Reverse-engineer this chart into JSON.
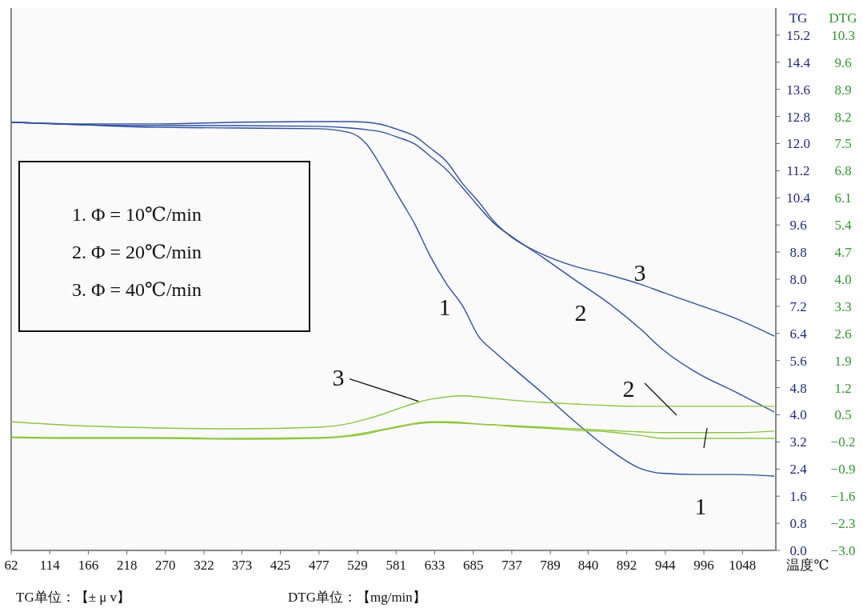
{
  "chart_data": {
    "type": "line",
    "xlabel": "温度℃",
    "ylabel": "TG",
    "y2label": "DTG",
    "xlim": [
      62,
      1093
    ],
    "xticks": [
      62,
      114,
      166,
      218,
      270,
      322,
      373,
      425,
      477,
      529,
      581,
      633,
      685,
      737,
      789,
      840,
      892,
      944,
      996,
      1048
    ],
    "ylim": [
      0,
      16
    ],
    "yticks": [
      {
        "value": 0,
        "label": "0.0"
      },
      0.8,
      1.6,
      2.4,
      3.2,
      {
        "value": 4,
        "label": "4.0"
      },
      4.8,
      5.6,
      6.4,
      7.2,
      {
        "value": 8,
        "label": "8.0"
      },
      8.8,
      9.6,
      10.4,
      11.2,
      {
        "value": 12,
        "label": "12.0"
      },
      12.8,
      13.6,
      14.4,
      15.2
    ],
    "y2lim": [
      -3,
      11
    ],
    "y2ticks": [
      {
        "value": -3,
        "label": "−3.0"
      },
      {
        "value": -2.3,
        "label": "−2.3"
      },
      {
        "value": -1.6,
        "label": "−1.6"
      },
      {
        "value": -0.9,
        "label": "−0.9"
      },
      {
        "value": -0.2,
        "label": "−0.2"
      },
      0.5,
      1.2,
      1.9,
      2.6,
      3.3,
      {
        "value": 4,
        "label": "4.0"
      },
      4.7,
      5.4,
      6.1,
      6.8,
      7.5,
      8.2,
      8.9,
      9.6,
      10.3
    ],
    "grid": false,
    "line_style": "solid",
    "marker": "none",
    "x": [
      62,
      151,
      259,
      367,
      476,
      519,
      541,
      562,
      584,
      606,
      627,
      649,
      671,
      692,
      714,
      736,
      779,
      822,
      866,
      909,
      942,
      985,
      1039,
      1091
    ],
    "series": [
      {
        "color": "#2f50a0",
        "values": [
          12.63,
          12.56,
          12.48,
          12.46,
          12.44,
          12.32,
          11.99,
          11.28,
          10.45,
          9.63,
          8.68,
          7.86,
          7.2,
          6.32,
          5.85,
          5.43,
          4.63,
          3.8,
          3.02,
          2.43,
          2.27,
          2.24,
          2.24,
          2.19
        ]
      },
      {
        "color": "#2f50a0",
        "values": [
          12.63,
          12.56,
          12.53,
          12.53,
          12.51,
          12.46,
          12.41,
          12.34,
          12.18,
          11.99,
          11.63,
          11.23,
          10.69,
          10.15,
          9.63,
          9.27,
          8.64,
          7.98,
          7.32,
          6.56,
          5.9,
          5.26,
          4.67,
          4.08
        ]
      },
      {
        "color": "#2f50a0",
        "values": [
          12.63,
          12.58,
          12.58,
          12.63,
          12.65,
          12.65,
          12.63,
          12.56,
          12.41,
          12.22,
          11.87,
          11.47,
          10.81,
          10.29,
          9.68,
          9.25,
          8.73,
          8.38,
          8.14,
          7.86,
          7.6,
          7.27,
          6.84,
          6.32
        ]
      },
      {
        "color": "#8cc63e",
        "axis": "y2",
        "values": [
          -0.09,
          -0.11,
          -0.11,
          -0.13,
          -0.11,
          -0.05,
          0.01,
          0.1,
          0.18,
          0.26,
          0.3,
          0.3,
          0.28,
          0.26,
          0.24,
          0.2,
          0.16,
          0.1,
          0.06,
          -0.03,
          -0.11,
          -0.11,
          -0.11,
          -0.11
        ]
      },
      {
        "color": "#8cc63e",
        "axis": "y2",
        "values": [
          -0.07,
          -0.09,
          -0.09,
          -0.11,
          -0.09,
          -0.03,
          0.04,
          0.12,
          0.2,
          0.28,
          0.32,
          0.32,
          0.3,
          0.26,
          0.24,
          0.22,
          0.18,
          0.14,
          0.1,
          0.06,
          0.04,
          0.04,
          0.04,
          0.08
        ]
      },
      {
        "color": "#8cc63e",
        "axis": "y2",
        "values": [
          0.32,
          0.22,
          0.16,
          0.14,
          0.18,
          0.28,
          0.39,
          0.51,
          0.66,
          0.8,
          0.9,
          0.96,
          0.99,
          0.96,
          0.92,
          0.88,
          0.82,
          0.78,
          0.74,
          0.72,
          0.72,
          0.72,
          0.72,
          0.72
        ]
      }
    ],
    "annotations": [
      "1. Φ = 10℃/min",
      "2. Φ = 20℃/min",
      "3. Φ = 40℃/min",
      "TG单位：【± μ v】",
      "DTG单位：【mg/min】",
      "1",
      "2",
      "3",
      {
        "text": "3",
        "x": 611,
        "y": 4.4
      },
      "2",
      "1"
    ]
  }
}
